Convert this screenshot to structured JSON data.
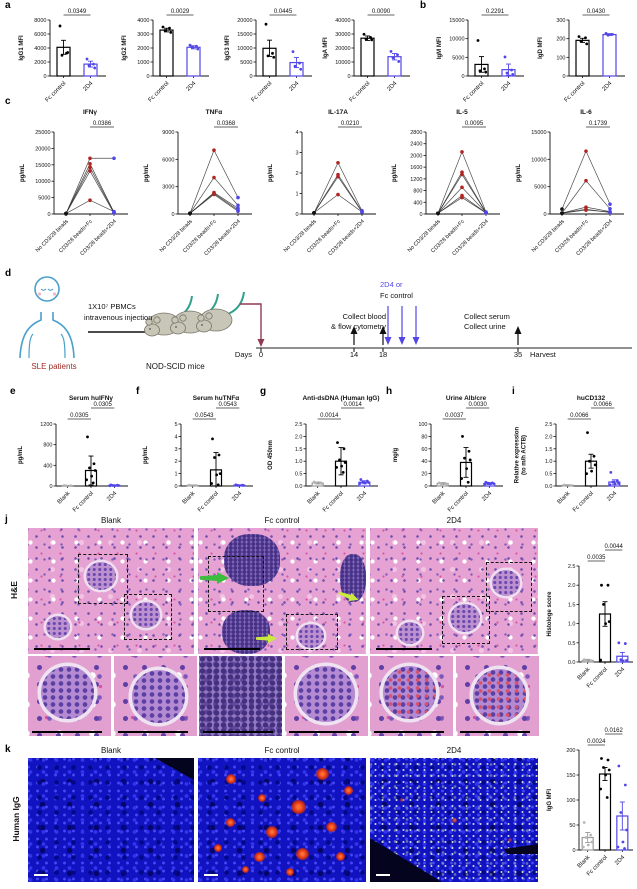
{
  "figure": {
    "panels": {
      "a": "a",
      "b": "b",
      "c": "c",
      "d": "d",
      "e": "e",
      "f": "f",
      "g": "g",
      "h": "h",
      "i": "i",
      "j": "j",
      "k": "k"
    }
  },
  "labels": {
    "he_row": "H&E",
    "igg_row": "Human IgG",
    "cols": [
      "Blank",
      "Fc control",
      "2D4"
    ]
  },
  "diagram": {
    "patients": "SLE patients",
    "injection_line1": "1X10⁷ PBMCs",
    "injection_line2": "intravenous injection",
    "mice": "NOD-SCID mice",
    "days_label": "Days",
    "day0": "0",
    "day14": "14",
    "day18": "18",
    "day35": "35",
    "harvest": "Harvest",
    "collect_blood_1": "Collect blood",
    "collect_blood_2": "& flow cytometry",
    "treat_1": "2D4 or",
    "treat_2": "Fc control",
    "collect_serum_1": "Collect serum",
    "collect_serum_2": "Collect urine"
  },
  "colors": {
    "accent_blue": "#5247e6",
    "red_points": "#b02421",
    "dark_red_arrow": "#8e3b52",
    "sle_text": "#9e2b25",
    "human_outline": "#4aa0cc",
    "mouse_tail": "#2fa08c",
    "green_arrow": "#3dbd3d",
    "yellow_arrow": "#cbe93f"
  },
  "chart_data": [
    {
      "id": "igg1",
      "type": "bar",
      "ylabel": "IgG1 MFI",
      "ylim": [
        0,
        8000
      ],
      "yticks": [
        0,
        2000,
        4000,
        6000,
        8000
      ],
      "categories": [
        "Fc control",
        "2D4"
      ],
      "colors": [
        "#000000",
        "#5247e6"
      ],
      "values": [
        4100,
        1700
      ],
      "errors": [
        1000,
        420
      ],
      "points": [
        [
          7150,
          3250,
          2950,
          3350
        ],
        [
          2420,
          1700,
          1500,
          1150
        ]
      ],
      "pvalues": [
        {
          "from": 0,
          "to": 1,
          "label": "0.0349",
          "level": 0
        }
      ]
    },
    {
      "id": "igg2",
      "type": "bar",
      "ylabel": "IgG2 MFI",
      "ylim": [
        0,
        4000
      ],
      "yticks": [
        0,
        1000,
        2000,
        3000,
        4000
      ],
      "categories": [
        "Fc control",
        "2D4"
      ],
      "colors": [
        "#000000",
        "#5247e6"
      ],
      "values": [
        3280,
        2050
      ],
      "errors": [
        130,
        110
      ],
      "points": [
        [
          3500,
          3420,
          3250,
          3120
        ],
        [
          2200,
          2120,
          2050,
          1930
        ]
      ],
      "pvalues": [
        {
          "from": 0,
          "to": 1,
          "label": "0.0029",
          "level": 0
        }
      ]
    },
    {
      "id": "igg3",
      "type": "bar",
      "ylabel": "IgG3 MFI",
      "ylim": [
        0,
        20000
      ],
      "yticks": [
        0,
        5000,
        10000,
        15000,
        20000
      ],
      "categories": [
        "Fc control",
        "2D4"
      ],
      "colors": [
        "#000000",
        "#5247e6"
      ],
      "values": [
        9900,
        4800
      ],
      "errors": [
        2900,
        1800
      ],
      "points": [
        [
          18500,
          8100,
          7200,
          6700
        ],
        [
          8700,
          4600,
          3500,
          2400
        ]
      ],
      "pvalues": [
        {
          "from": 0,
          "to": 1,
          "label": "0.0445",
          "level": 0
        }
      ]
    },
    {
      "id": "iga",
      "type": "bar",
      "ylabel": "IgA MFI",
      "ylim": [
        0,
        40000
      ],
      "yticks": [
        0,
        10000,
        20000,
        30000,
        40000
      ],
      "categories": [
        "Fc control",
        "2D4"
      ],
      "colors": [
        "#000000",
        "#5247e6"
      ],
      "values": [
        27000,
        13800
      ],
      "errors": [
        1600,
        2300
      ],
      "points": [
        [
          29800,
          27600,
          26500,
          25800
        ],
        [
          17600,
          15200,
          13000,
          10400
        ]
      ],
      "pvalues": [
        {
          "from": 0,
          "to": 1,
          "label": "0.0090",
          "level": 0
        }
      ]
    },
    {
      "id": "igm",
      "type": "bar",
      "ylabel": "IgM MFI",
      "ylim": [
        0,
        15000
      ],
      "yticks": [
        0,
        5000,
        10000,
        15000
      ],
      "categories": [
        "Fc control",
        "2D4"
      ],
      "colors": [
        "#000000",
        "#5247e6"
      ],
      "values": [
        3100,
        1700
      ],
      "errors": [
        2100,
        1500
      ],
      "points": [
        [
          9500,
          1900,
          1400,
          1050
        ],
        [
          5100,
          1600,
          800,
          420
        ]
      ],
      "pvalues": [
        {
          "from": 0,
          "to": 1,
          "label": "0.2291",
          "level": 0
        }
      ]
    },
    {
      "id": "igd",
      "type": "bar",
      "ylabel": "IgD MFI",
      "ylim": [
        0,
        300
      ],
      "yticks": [
        0,
        100,
        200,
        300
      ],
      "categories": [
        "Fc control",
        "2D4"
      ],
      "colors": [
        "#000000",
        "#5247e6"
      ],
      "values": [
        191,
        222
      ],
      "errors": [
        11,
        5
      ],
      "points": [
        [
          211,
          205,
          186,
          172
        ],
        [
          228,
          223,
          218
        ]
      ],
      "pvalues": [
        {
          "from": 0,
          "to": 1,
          "label": "0.0430",
          "level": 0
        }
      ]
    },
    {
      "id": "ifng",
      "type": "paired",
      "title": "IFNγ",
      "ylabel": "pg/mL",
      "ylim": [
        0,
        25000
      ],
      "yticks": [
        0,
        5000,
        10000,
        15000,
        20000,
        25000
      ],
      "categories": [
        "No CD3/28 beads",
        "CD3/28 beads+Fc",
        "CD3/28 beads+2D4"
      ],
      "dot_colors": [
        "#111111",
        "#b02421",
        "#5247e6"
      ],
      "series": [
        [
          120,
          17000,
          17000
        ],
        [
          120,
          15300,
          520
        ],
        [
          120,
          14200,
          380
        ],
        [
          120,
          13100,
          260
        ],
        [
          120,
          4200,
          750
        ]
      ],
      "pvalues": [
        {
          "from": 1,
          "to": 2,
          "label": "0.0386",
          "level": 0
        }
      ]
    },
    {
      "id": "tnfa",
      "type": "paired",
      "title": "TNFα",
      "ylabel": "pg/mL",
      "ylim": [
        0,
        9000
      ],
      "yticks": [
        0,
        3000,
        6000,
        9000
      ],
      "categories": [
        "No CD3/28 beads",
        "CD3/28 beads+Fc",
        "CD3/28 beads+2D4"
      ],
      "dot_colors": [
        "#111111",
        "#b02421",
        "#5247e6"
      ],
      "series": [
        [
          70,
          7000,
          1800
        ],
        [
          70,
          4000,
          950
        ],
        [
          70,
          2350,
          620
        ],
        [
          70,
          2250,
          430
        ],
        [
          70,
          2150,
          300
        ]
      ],
      "pvalues": [
        {
          "from": 1,
          "to": 2,
          "label": "0.0368",
          "level": 0
        }
      ]
    },
    {
      "id": "il17a",
      "type": "paired",
      "title": "IL-17A",
      "ylabel": "pg/mL",
      "ylim": [
        0,
        4
      ],
      "yticks": [
        0,
        1,
        2,
        3,
        4
      ],
      "categories": [
        "No CD3/28 beads",
        "CD3/28 beads+Fc",
        "CD3/28 beads+2D4"
      ],
      "dot_colors": [
        "#111111",
        "#b02421",
        "#5247e6"
      ],
      "series": [
        [
          0.05,
          2.5,
          0.16
        ],
        [
          0.05,
          1.92,
          0.12
        ],
        [
          0.05,
          1.82,
          0.1
        ],
        [
          0.06,
          0.95,
          0.1
        ]
      ],
      "pvalues": [
        {
          "from": 1,
          "to": 2,
          "label": "0.0210",
          "level": 0
        }
      ]
    },
    {
      "id": "il5",
      "type": "paired",
      "title": "IL-5",
      "ylabel": "pg/mL",
      "ylim": [
        0,
        2800
      ],
      "yticks": [
        0,
        400,
        800,
        1200,
        1600,
        2000,
        2400,
        2800
      ],
      "categories": [
        "No CD3/28 beads",
        "CD3/28 beads+Fc",
        "CD3/28 beads+2D4"
      ],
      "dot_colors": [
        "#111111",
        "#b02421",
        "#5247e6"
      ],
      "series": [
        [
          25,
          2120,
          65
        ],
        [
          25,
          1430,
          55
        ],
        [
          25,
          1350,
          45
        ],
        [
          25,
          910,
          52
        ],
        [
          25,
          630,
          40
        ],
        [
          25,
          560,
          35
        ]
      ],
      "pvalues": [
        {
          "from": 1,
          "to": 2,
          "label": "0.0095",
          "level": 0
        }
      ]
    },
    {
      "id": "il6",
      "type": "paired",
      "title": "IL-6",
      "ylabel": "pg/mL",
      "ylim": [
        0,
        15000
      ],
      "yticks": [
        0,
        5000,
        10000,
        15000
      ],
      "categories": [
        "No CD3/28 beads",
        "CD3/28 beads+Fc",
        "CD3/28 beads+2D4"
      ],
      "dot_colors": [
        "#111111",
        "#b02421",
        "#5247e6"
      ],
      "series": [
        [
          900,
          11500,
          1800
        ],
        [
          160,
          6100,
          950
        ],
        [
          160,
          1250,
          430
        ],
        [
          160,
          880,
          260
        ],
        [
          160,
          720,
          360
        ]
      ],
      "pvalues": [
        {
          "from": 1,
          "to": 2,
          "label": "0.1739",
          "level": 0
        }
      ]
    },
    {
      "id": "serum_ifng",
      "type": "bar",
      "title": "Serum huIFNγ",
      "ylabel": "pg/mL",
      "ylim": [
        0,
        1200
      ],
      "yticks": [
        0,
        400,
        800,
        1200
      ],
      "categories": [
        "Blank",
        "Fc control",
        "2D4"
      ],
      "colors": [
        "#9a9a9a",
        "#000000",
        "#5247e6"
      ],
      "point_colors": [
        "#b5b5b5",
        "#000000",
        "#5247e6"
      ],
      "values": [
        6,
        300,
        12
      ],
      "errors": [
        4,
        280,
        8
      ],
      "points": [
        [
          10,
          7,
          5
        ],
        [
          950,
          430,
          350,
          300,
          190,
          120,
          60
        ],
        [
          22,
          16,
          12,
          9,
          7,
          5
        ]
      ],
      "pvalues": [
        {
          "from": 0,
          "to": 1,
          "label": "0.0305",
          "level": 0
        },
        {
          "from": 1,
          "to": 2,
          "label": "0.0305",
          "level": 1
        }
      ]
    },
    {
      "id": "serum_tnfa",
      "type": "bar",
      "title": "Serum huTNFα",
      "ylabel": "pg/mL",
      "ylim": [
        0,
        5
      ],
      "yticks": [
        0,
        1,
        2,
        3,
        4,
        5
      ],
      "categories": [
        "Blank",
        "Fc control",
        "2D4"
      ],
      "colors": [
        "#9a9a9a",
        "#000000",
        "#5247e6"
      ],
      "point_colors": [
        "#b5b5b5",
        "#000000",
        "#5247e6"
      ],
      "values": [
        0.05,
        1.3,
        0.06
      ],
      "errors": [
        0.03,
        1.4,
        0.04
      ],
      "points": [
        [
          0.07,
          0.05
        ],
        [
          3.8,
          2.5,
          2.3,
          1.0,
          0.9,
          0.2,
          0.1
        ],
        [
          0.1,
          0.07,
          0.05,
          0.04
        ]
      ],
      "pvalues": [
        {
          "from": 0,
          "to": 1,
          "label": "0.0543",
          "level": 0
        },
        {
          "from": 1,
          "to": 2,
          "label": "0.0543",
          "level": 1
        }
      ]
    },
    {
      "id": "dsdna",
      "type": "bar",
      "title": "Anti-dsDNA (Human IgG)",
      "ylabel": "OD 450nm",
      "ylim": [
        0,
        2.5
      ],
      "yticks": [
        0,
        0.5,
        1,
        1.5,
        2,
        2.5
      ],
      "ytick_labels": [
        "0.0",
        "0.5",
        "1.0",
        "1.5",
        "2.0",
        "2.5"
      ],
      "categories": [
        "Blank",
        "Fc control",
        "2D4"
      ],
      "colors": [
        "#9a9a9a",
        "#000000",
        "#5247e6"
      ],
      "point_colors": [
        "#b5b5b5",
        "#000000",
        "#5247e6"
      ],
      "values": [
        0.12,
        1.0,
        0.15
      ],
      "errors": [
        0.04,
        0.55,
        0.06
      ],
      "points": [
        [
          0.16,
          0.13,
          0.11,
          0.1
        ],
        [
          1.75,
          1.5,
          1.05,
          0.95,
          0.8,
          0.75,
          0.55
        ],
        [
          0.26,
          0.2,
          0.17,
          0.14,
          0.12,
          0.1
        ]
      ],
      "pvalues": [
        {
          "from": 0,
          "to": 1,
          "label": "0.0014",
          "level": 0
        },
        {
          "from": 1,
          "to": 2,
          "label": "0.0014",
          "level": 1
        }
      ]
    },
    {
      "id": "urine",
      "type": "bar",
      "title": "Urine Alb/cre",
      "ylabel": "mg/g",
      "ylim": [
        0,
        100
      ],
      "yticks": [
        0,
        20,
        40,
        60,
        80,
        100
      ],
      "categories": [
        "Blank",
        "Fc control",
        "2D4"
      ],
      "colors": [
        "#9a9a9a",
        "#000000",
        "#5247e6"
      ],
      "point_colors": [
        "#b5b5b5",
        "#000000",
        "#5247e6"
      ],
      "values": [
        4,
        38,
        4
      ],
      "errors": [
        1.5,
        24,
        1.5
      ],
      "points": [
        [
          5,
          4,
          3.5,
          3
        ],
        [
          80,
          56,
          45,
          42,
          28,
          12,
          6
        ],
        [
          6,
          5,
          4.5,
          4,
          3.5,
          3
        ]
      ],
      "pvalues": [
        {
          "from": 0,
          "to": 1,
          "label": "0.0037",
          "level": 0
        },
        {
          "from": 1,
          "to": 2,
          "label": "0.0030",
          "level": 1
        }
      ]
    },
    {
      "id": "cd132",
      "type": "bar",
      "title": "huCD132",
      "ylabel": [
        "Relative expression",
        "(to m/h ACTB)"
      ],
      "ylim": [
        0,
        2.5
      ],
      "yticks": [
        0,
        0.5,
        1,
        1.5,
        2,
        2.5
      ],
      "ytick_labels": [
        "0.0",
        "0.5",
        "1.0",
        "1.5",
        "2.0",
        "2.5"
      ],
      "categories": [
        "Blank",
        "Fc control",
        "2D4"
      ],
      "colors": [
        "#9a9a9a",
        "#000000",
        "#5247e6"
      ],
      "point_colors": [
        "#b5b5b5",
        "#000000",
        "#5247e6"
      ],
      "values": [
        0.03,
        1.0,
        0.16
      ],
      "errors": [
        0.02,
        0.28,
        0.09
      ],
      "points": [
        [
          0.04,
          0.02
        ],
        [
          2.15,
          1.2,
          1.0,
          0.85,
          0.6,
          0.5
        ],
        [
          0.55,
          0.22,
          0.16,
          0.1,
          0.08,
          0.05
        ]
      ],
      "pvalues": [
        {
          "from": 0,
          "to": 1,
          "label": "0.0066",
          "level": 0
        },
        {
          "from": 1,
          "to": 2,
          "label": "0.0066",
          "level": 1
        }
      ]
    },
    {
      "id": "histo",
      "type": "bar",
      "ylabel": "Histologe score",
      "ylim": [
        0,
        2.5
      ],
      "yticks": [
        0,
        0.5,
        1,
        1.5,
        2,
        2.5
      ],
      "ytick_labels": [
        "0.0",
        "0.5",
        "1.0",
        "1.5",
        "2.0",
        "2.5"
      ],
      "categories": [
        "Blank",
        "Fc control",
        "2D4"
      ],
      "colors": [
        "#9a9a9a",
        "#000000",
        "#5247e6"
      ],
      "point_colors": [
        "#b5b5b5",
        "#000000",
        "#5247e6"
      ],
      "values": [
        0.04,
        1.25,
        0.15
      ],
      "errors": [
        0.03,
        0.32,
        0.1
      ],
      "points": [
        [
          0.06,
          0.04,
          0.02
        ],
        [
          2.0,
          2.0,
          1.5,
          1.05,
          1.0,
          0.05
        ],
        [
          0.5,
          0.48,
          0.06,
          0.04,
          0.02
        ]
      ],
      "pvalues": [
        {
          "from": 0,
          "to": 1,
          "label": "0.0035",
          "level": 0
        },
        {
          "from": 1,
          "to": 2,
          "label": "0.0044",
          "level": 1
        }
      ]
    },
    {
      "id": "kigg",
      "type": "bar",
      "ylabel": "IgG MFI",
      "ylim": [
        0,
        200
      ],
      "yticks": [
        0,
        50,
        100,
        150,
        200
      ],
      "categories": [
        "Blank",
        "Fc control",
        "2D4"
      ],
      "colors": [
        "#9a9a9a",
        "#000000",
        "#5247e6"
      ],
      "point_colors": [
        "#b5b5b5",
        "#000000",
        "#5247e6"
      ],
      "values": [
        25,
        152,
        68
      ],
      "errors": [
        10,
        13,
        28
      ],
      "points": [
        [
          55,
          30,
          25,
          16,
          10,
          6
        ],
        [
          183,
          180,
          165,
          160,
          150,
          122,
          105
        ],
        [
          168,
          130,
          75,
          40,
          16,
          6,
          3
        ]
      ],
      "pvalues": [
        {
          "from": 0,
          "to": 1,
          "label": "0.0024",
          "level": 0
        },
        {
          "from": 1,
          "to": 2,
          "label": "0.0162",
          "level": 1
        }
      ]
    }
  ]
}
